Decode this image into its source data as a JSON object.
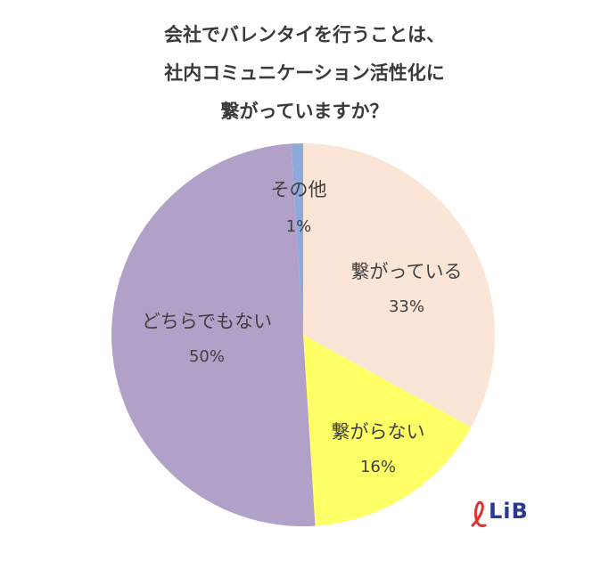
{
  "title_lines": [
    "会社でバレンタイを行うことは、",
    "社内コミュニケーション活性化に",
    "繋がっていますか？"
  ],
  "logo": {
    "text": "LiB",
    "accent_color": "#e0302f",
    "text_color": "#2b3a8f"
  },
  "chart_data": {
    "type": "pie",
    "title": "会社でバレンタイを行うことは、社内コミュニケーション活性化に繋がっていますか？",
    "start": "top, clockwise",
    "slices": [
      {
        "label": "繋がっている",
        "value": 33,
        "value_label": "33%",
        "color": "#fbe5d6"
      },
      {
        "label": "繋がらない",
        "value": 16,
        "value_label": "16%",
        "color": "#ffff66"
      },
      {
        "label": "どちらでもない",
        "value": 50,
        "value_label": "50%",
        "color": "#b1a0c7"
      },
      {
        "label": "その他",
        "value": 1,
        "value_label": "1%",
        "color": "#8eaadb"
      }
    ]
  }
}
